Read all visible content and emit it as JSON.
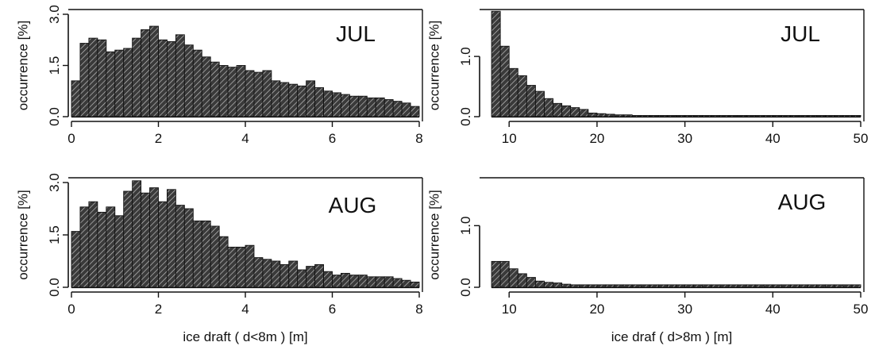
{
  "chart_data": [
    {
      "type": "bar",
      "panel": "upper-left",
      "month": "JUL",
      "xlabel": "",
      "ylabel": "occurrence [%]",
      "xlim": [
        0,
        8
      ],
      "ylim": [
        0,
        3.0
      ],
      "xticks": [
        0,
        2,
        4,
        6,
        8
      ],
      "yticks": [
        0.0,
        1.5,
        3.0
      ],
      "ytick_labels": [
        "0.0",
        "1.5",
        "3.0"
      ],
      "bin_width": 0.2,
      "x": [
        0.1,
        0.3,
        0.5,
        0.7,
        0.9,
        1.1,
        1.3,
        1.5,
        1.7,
        1.9,
        2.1,
        2.3,
        2.5,
        2.7,
        2.9,
        3.1,
        3.3,
        3.5,
        3.7,
        3.9,
        4.1,
        4.3,
        4.5,
        4.7,
        4.9,
        5.1,
        5.3,
        5.5,
        5.7,
        5.9,
        6.1,
        6.3,
        6.5,
        6.7,
        6.9,
        7.1,
        7.3,
        7.5,
        7.7,
        7.9
      ],
      "values": [
        1.05,
        2.15,
        2.3,
        2.25,
        1.9,
        1.95,
        2.0,
        2.3,
        2.55,
        2.65,
        2.25,
        2.2,
        2.4,
        2.1,
        1.95,
        1.75,
        1.6,
        1.5,
        1.45,
        1.5,
        1.35,
        1.3,
        1.35,
        1.05,
        1.0,
        0.95,
        0.9,
        1.05,
        0.85,
        0.75,
        0.7,
        0.65,
        0.6,
        0.6,
        0.55,
        0.55,
        0.5,
        0.45,
        0.4,
        0.3
      ]
    },
    {
      "type": "bar",
      "panel": "upper-right",
      "month": "JUL",
      "xlabel": "",
      "ylabel": "occurrence [%]",
      "xlim": [
        7,
        50
      ],
      "ylim": [
        0,
        1.7
      ],
      "xticks": [
        10,
        20,
        30,
        40,
        50
      ],
      "yticks": [
        0.0,
        1.0
      ],
      "ytick_labels": [
        "0.0",
        "1.0"
      ],
      "bin_width": 1,
      "x": [
        8.5,
        9.5,
        10.5,
        11.5,
        12.5,
        13.5,
        14.5,
        15.5,
        16.5,
        17.5,
        18.5,
        19.5,
        20.5,
        21.5,
        22.5,
        23.5,
        24.5,
        25.5,
        26.5,
        27.5,
        28.5,
        29.5,
        30.5,
        31.5,
        32.5,
        33.5,
        34.5,
        35.5,
        36.5,
        37.5,
        38.5,
        39.5,
        40.5,
        41.5,
        42.5,
        43.5,
        44.5,
        45.5,
        46.5,
        47.5,
        48.5,
        49.5
      ],
      "values": [
        1.75,
        1.17,
        0.8,
        0.68,
        0.52,
        0.42,
        0.3,
        0.22,
        0.18,
        0.15,
        0.12,
        0.06,
        0.05,
        0.04,
        0.03,
        0.03,
        0.02,
        0.02,
        0.02,
        0.02,
        0.02,
        0.02,
        0.02,
        0.02,
        0.02,
        0.02,
        0.02,
        0.02,
        0.02,
        0.02,
        0.02,
        0.02,
        0.02,
        0.02,
        0.02,
        0.02,
        0.02,
        0.02,
        0.02,
        0.02,
        0.02,
        0.02
      ]
    },
    {
      "type": "bar",
      "panel": "lower-left",
      "month": "AUG",
      "xlabel": "ice draft ( d<8m ) [m]",
      "ylabel": "occurrence [%]",
      "xlim": [
        0,
        8
      ],
      "ylim": [
        0,
        3.0
      ],
      "xticks": [
        0,
        2,
        4,
        6,
        8
      ],
      "yticks": [
        0.0,
        1.5,
        3.0
      ],
      "ytick_labels": [
        "0.0",
        "1.5",
        "3.0"
      ],
      "bin_width": 0.2,
      "x": [
        0.1,
        0.3,
        0.5,
        0.7,
        0.9,
        1.1,
        1.3,
        1.5,
        1.7,
        1.9,
        2.1,
        2.3,
        2.5,
        2.7,
        2.9,
        3.1,
        3.3,
        3.5,
        3.7,
        3.9,
        4.1,
        4.3,
        4.5,
        4.7,
        4.9,
        5.1,
        5.3,
        5.5,
        5.7,
        5.9,
        6.1,
        6.3,
        6.5,
        6.7,
        6.9,
        7.1,
        7.3,
        7.5,
        7.7,
        7.9
      ],
      "values": [
        1.6,
        2.3,
        2.45,
        2.15,
        2.3,
        2.05,
        2.75,
        3.05,
        2.7,
        2.85,
        2.45,
        2.8,
        2.35,
        2.25,
        1.9,
        1.9,
        1.75,
        1.45,
        1.15,
        1.15,
        1.2,
        0.85,
        0.8,
        0.75,
        0.65,
        0.75,
        0.5,
        0.6,
        0.65,
        0.45,
        0.35,
        0.4,
        0.35,
        0.35,
        0.3,
        0.3,
        0.3,
        0.25,
        0.2,
        0.15
      ]
    },
    {
      "type": "bar",
      "panel": "lower-right",
      "month": "AUG",
      "xlabel": "ice draf ( d>8m ) [m]",
      "ylabel": "occurrence [%]",
      "xlim": [
        7,
        50
      ],
      "ylim": [
        0,
        1.7
      ],
      "xticks": [
        10,
        20,
        30,
        40,
        50
      ],
      "yticks": [
        0.0,
        1.0
      ],
      "ytick_labels": [
        "0.0",
        "1.0"
      ],
      "bin_width": 1,
      "x": [
        8.5,
        9.5,
        10.5,
        11.5,
        12.5,
        13.5,
        14.5,
        15.5,
        16.5,
        17.5,
        18.5,
        19.5,
        20.5,
        21.5,
        22.5,
        23.5,
        24.5,
        25.5,
        26.5,
        27.5,
        28.5,
        29.5,
        30.5,
        31.5,
        32.5,
        33.5,
        34.5,
        35.5,
        36.5,
        37.5,
        38.5,
        39.5,
        40.5,
        41.5,
        42.5,
        43.5,
        44.5,
        45.5,
        46.5,
        47.5,
        48.5,
        49.5
      ],
      "values": [
        0.42,
        0.42,
        0.3,
        0.22,
        0.16,
        0.1,
        0.08,
        0.07,
        0.05,
        0.04,
        0.04,
        0.04,
        0.04,
        0.04,
        0.04,
        0.04,
        0.04,
        0.04,
        0.04,
        0.04,
        0.04,
        0.04,
        0.04,
        0.04,
        0.04,
        0.04,
        0.04,
        0.04,
        0.04,
        0.04,
        0.04,
        0.04,
        0.04,
        0.04,
        0.04,
        0.04,
        0.04,
        0.04,
        0.04,
        0.04,
        0.04,
        0.04
      ]
    }
  ]
}
